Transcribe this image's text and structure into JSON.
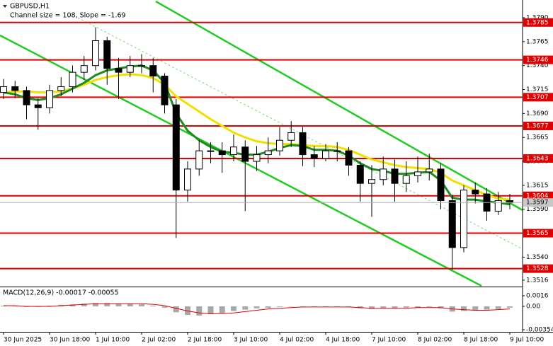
{
  "chart_data": {
    "type": "candlestick",
    "title": "GBPUSD,H1",
    "subtitle": "Channel size = 108, Slope = -1.69",
    "categories": [
      "30 Jun 2025",
      null,
      null,
      null,
      "30 Jun 18:00",
      null,
      null,
      null,
      "1 Jul 10:00",
      null,
      null,
      null,
      "2 Jul 02:00",
      null,
      null,
      null,
      "2 Jul 18:00",
      null,
      null,
      null,
      "3 Jul 10:00",
      null,
      null,
      null,
      "4 Jul 02:00",
      null,
      null,
      null,
      "4 Jul 18:00",
      null,
      null,
      null,
      "7 Jul 10:00",
      null,
      null,
      null,
      "8 Jul 02:00",
      null,
      null,
      null,
      "8 Jul 18:00",
      null,
      null,
      null,
      "9 Jul 10:00"
    ],
    "open": [
      1.3712,
      1.3718,
      1.3714,
      1.3699,
      1.3696,
      1.3714,
      1.3718,
      1.3733,
      1.374,
      1.3766,
      1.3737,
      1.3733,
      1.374,
      1.374,
      1.3729,
      1.3699,
      1.361,
      1.3632,
      1.3651,
      1.3651,
      1.3647,
      1.3655,
      1.364,
      1.3647,
      1.3651,
      1.3662,
      1.367,
      1.3647,
      1.3643,
      1.3651,
      1.3651,
      1.3636,
      1.3617,
      1.3621,
      1.3632,
      1.3617,
      1.3625,
      1.3629,
      1.3632,
      1.3599,
      1.355,
      1.361,
      1.3606,
      1.3588,
      1.3599
    ],
    "high": [
      1.3726,
      1.3724,
      1.3718,
      1.3706,
      1.372,
      1.3728,
      1.374,
      1.375,
      1.378,
      1.377,
      1.3748,
      1.375,
      1.3752,
      1.3748,
      1.3732,
      1.3705,
      1.364,
      1.3662,
      1.366,
      1.366,
      1.3668,
      1.3662,
      1.3656,
      1.3665,
      1.3676,
      1.3682,
      1.3676,
      1.3656,
      1.3658,
      1.366,
      1.3655,
      1.364,
      1.3636,
      1.3645,
      1.3642,
      1.364,
      1.3645,
      1.3648,
      1.3638,
      1.3605,
      1.3615,
      1.3618,
      1.3612,
      1.3608,
      1.3606
    ],
    "low": [
      1.3705,
      1.3706,
      1.3684,
      1.3673,
      1.369,
      1.3708,
      1.3712,
      1.3725,
      1.3735,
      1.372,
      1.3705,
      1.3728,
      1.3732,
      1.3712,
      1.369,
      1.356,
      1.3598,
      1.3625,
      1.3638,
      1.3628,
      1.364,
      1.3588,
      1.363,
      1.3638,
      1.3646,
      1.3655,
      1.3635,
      1.3634,
      1.364,
      1.364,
      1.3625,
      1.3598,
      1.3582,
      1.3615,
      1.3598,
      1.3608,
      1.3618,
      1.362,
      1.359,
      1.3527,
      1.3545,
      1.3596,
      1.3578,
      1.3584,
      1.359
    ],
    "close": [
      1.3718,
      1.3714,
      1.3699,
      1.3696,
      1.3714,
      1.3718,
      1.3733,
      1.374,
      1.3766,
      1.3737,
      1.3733,
      1.374,
      1.374,
      1.3729,
      1.3699,
      1.361,
      1.3632,
      1.3651,
      1.3651,
      1.3647,
      1.3655,
      1.364,
      1.3647,
      1.3651,
      1.3662,
      1.367,
      1.3647,
      1.3643,
      1.3651,
      1.3651,
      1.3636,
      1.3617,
      1.3621,
      1.3632,
      1.3617,
      1.3625,
      1.3629,
      1.3632,
      1.3599,
      1.355,
      1.361,
      1.3606,
      1.3588,
      1.3599,
      1.3597
    ],
    "up_color": "#ffffff",
    "down_color": "#000000",
    "series": [
      {
        "color": "#f0e000",
        "values": [
          1.3712,
          1.3713,
          1.3713,
          1.3712,
          1.3712,
          1.3713,
          1.3716,
          1.372,
          1.3725,
          1.3728,
          1.373,
          1.3731,
          1.373,
          1.3727,
          1.372,
          1.3708,
          1.37,
          1.3692,
          1.3684,
          1.3677,
          1.367,
          1.3665,
          1.3661,
          1.3659,
          1.3658,
          1.3658,
          1.3657,
          1.3656,
          1.3656,
          1.3655,
          1.3652,
          1.3647,
          1.3642,
          1.3639,
          1.3636,
          1.3634,
          1.3633,
          1.3632,
          1.3628,
          1.362,
          1.3615,
          1.361,
          1.3605,
          1.3601,
          1.36
        ]
      },
      {
        "color": "#1e8c1e",
        "values": [
          1.3712,
          1.371,
          1.3706,
          1.3704,
          1.3706,
          1.371,
          1.3716,
          1.3722,
          1.373,
          1.3735,
          1.3737,
          1.3739,
          1.374,
          1.3735,
          1.3722,
          1.369,
          1.3672,
          1.3662,
          1.3655,
          1.365,
          1.3649,
          1.3647,
          1.3647,
          1.365,
          1.3654,
          1.3657,
          1.3656,
          1.3652,
          1.3652,
          1.3651,
          1.3646,
          1.3638,
          1.3632,
          1.363,
          1.3627,
          1.3627,
          1.3628,
          1.3629,
          1.362,
          1.3602,
          1.36,
          1.36,
          1.3598,
          1.3597,
          1.3595
        ]
      }
    ],
    "levels": {
      "color": "#e00000",
      "values": [
        1.3785,
        1.3746,
        1.3707,
        1.3677,
        1.3643,
        1.3604,
        1.3565,
        1.3528
      ]
    },
    "last_price": 1.3597,
    "ylim": [
      1.351,
      1.3807
    ],
    "yticks": [
      {
        "value": 1.379,
        "label": "1.3790"
      },
      1.3765,
      {
        "value": 1.374,
        "label": "1.3740"
      },
      1.3715,
      {
        "value": 1.369,
        "label": "1.3690"
      },
      1.3665,
      {
        "value": 1.364,
        "label": "1.3640"
      },
      1.3615,
      {
        "value": 1.359,
        "label": "1.3590"
      },
      {
        "value": 1.354,
        "label": "1.3540"
      },
      1.3516
    ],
    "macd": {
      "type": "histogram",
      "label": "MACD(12,26,9) -0.00017 -0.00055",
      "color": "#a8a8a8",
      "values": [
        0.0001,
        0,
        -0.0001,
        -0.0001,
        0.0001,
        0.0002,
        0.0003,
        0.0004,
        0.0005,
        0.0005,
        0.0004,
        0.0004,
        0.0003,
        0.0001,
        -0.0002,
        -0.0009,
        -0.0013,
        -0.0014,
        -0.0012,
        -0.001,
        -0.0007,
        -0.0005,
        -0.0003,
        -0.0002,
        -0.0001,
        0,
        0,
        -0.0001,
        0,
        0,
        -0.0001,
        -0.0003,
        -0.0004,
        -0.0003,
        -0.0003,
        -0.0002,
        -0.0002,
        -0.0001,
        -0.0003,
        -0.0008,
        -0.0007,
        -0.0006,
        -0.0005,
        -0.0004,
        -0.0002
      ],
      "signal": {
        "color": "#e00000",
        "values": [
          0.0001,
          0.0001,
          0,
          0,
          0,
          0.0001,
          0.0002,
          0.0003,
          0.0004,
          0.0004,
          0.0004,
          0.0004,
          0.0004,
          0.0003,
          0.0001,
          -0.0003,
          -0.0007,
          -0.001,
          -0.0011,
          -0.0011,
          -0.001,
          -0.0008,
          -0.0006,
          -0.0004,
          -0.0003,
          -0.0002,
          -0.0001,
          -0.0001,
          -0.0001,
          -0.0001,
          -0.0001,
          -0.0002,
          -0.0003,
          -0.0003,
          -0.0003,
          -0.0003,
          -0.0002,
          -0.0002,
          -0.0002,
          -0.0004,
          -0.0005,
          -0.0006,
          -0.0006,
          -0.0005,
          -0.0004
        ]
      },
      "ylim": [
        -0.00354,
        0.0016
      ],
      "yticks": [
        0.0016,
        {
          "value": 0,
          "label": "0.00"
        },
        -0.00354
      ]
    }
  }
}
